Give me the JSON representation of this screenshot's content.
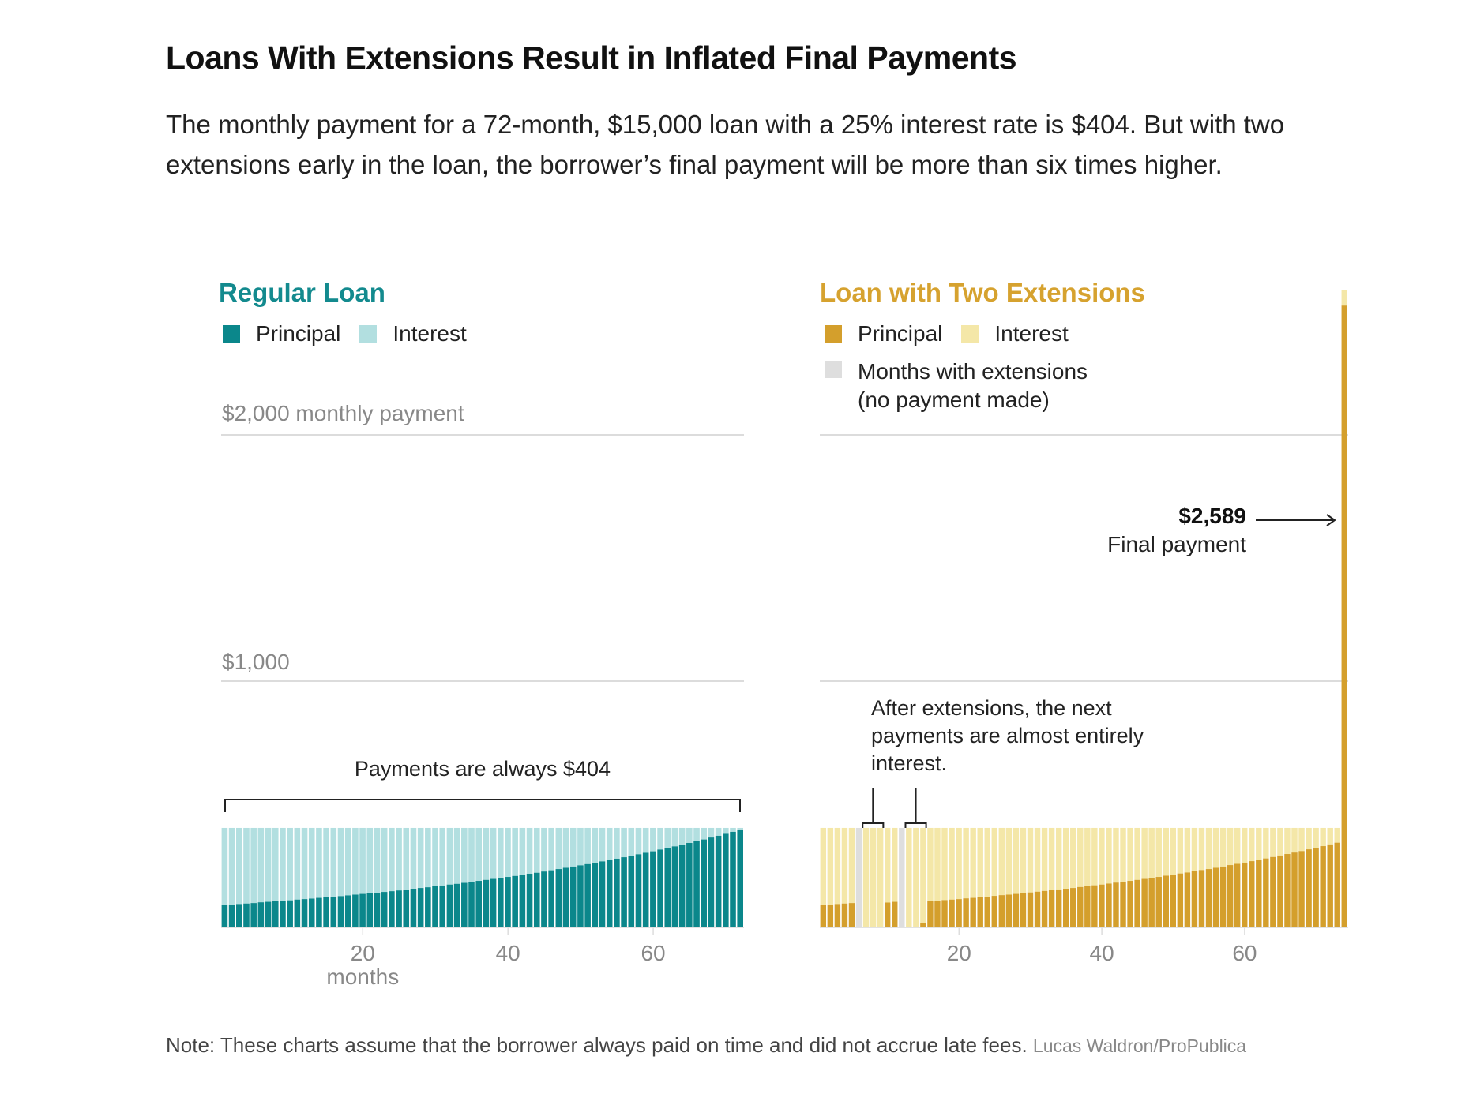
{
  "title": "Loans With Extensions Result in Inflated Final Payments",
  "subtitle": "The monthly payment for a 72-month, $15,000 loan with a 25% interest rate is $404. But with two extensions early in the loan, the borrower’s final payment will be more than six times higher.",
  "note": "Note: These charts assume that the borrower always paid on time and did not accrue late fees.",
  "credit": "Lucas Waldron/ProPublica",
  "colors": {
    "regular_principal": "#0b878b",
    "regular_interest": "#b2dfe0",
    "ext_principal": "#d49f2c",
    "ext_interest": "#f4e7a8",
    "extension_month": "#dedede",
    "regular_title": "#138a8e",
    "ext_title": "#d6a22f"
  },
  "chart_data": [
    {
      "type": "bar",
      "stacked": true,
      "title": "Regular Loan",
      "legend": [
        "Principal",
        "Interest"
      ],
      "ylabel_top": "$2,000 monthly payment",
      "ylabel_mid": "$1,000",
      "yticks": [
        1000,
        2000
      ],
      "ylim": [
        0,
        2000
      ],
      "xlabel": "months",
      "xticks": [
        20,
        40,
        60
      ],
      "annotation": "Payments are always $404",
      "payment": 404,
      "principal": [
        92,
        93,
        95,
        97,
        99,
        102,
        104,
        106,
        108,
        110,
        113,
        115,
        117,
        120,
        122,
        125,
        127,
        130,
        133,
        136,
        138,
        141,
        144,
        147,
        150,
        153,
        157,
        160,
        163,
        167,
        170,
        174,
        177,
        181,
        185,
        189,
        193,
        197,
        201,
        205,
        209,
        213,
        218,
        222,
        227,
        232,
        237,
        242,
        247,
        252,
        257,
        262,
        268,
        273,
        279,
        285,
        291,
        297,
        303,
        309,
        316,
        322,
        329,
        336,
        343,
        350,
        357,
        365,
        372,
        380,
        388,
        396
      ]
    },
    {
      "type": "bar",
      "stacked": true,
      "title": "Loan with Two Extensions",
      "legend": [
        "Principal",
        "Interest",
        "Months with extensions",
        "(no payment made)"
      ],
      "ylim": [
        0,
        2000
      ],
      "yticks": [
        1000,
        2000
      ],
      "xticks": [
        20,
        40,
        60
      ],
      "annotation": "After extensions, the next payments are almost entirely interest.",
      "final_value_label": "$2,589",
      "final_label": "Final payment",
      "extension_months": [
        6,
        12
      ],
      "payments": [
        404,
        404,
        404,
        404,
        404,
        0,
        404,
        404,
        404,
        404,
        404,
        0,
        404,
        404,
        404,
        404,
        404,
        404,
        404,
        404,
        404,
        404,
        404,
        404,
        404,
        404,
        404,
        404,
        404,
        404,
        404,
        404,
        404,
        404,
        404,
        404,
        404,
        404,
        404,
        404,
        404,
        404,
        404,
        404,
        404,
        404,
        404,
        404,
        404,
        404,
        404,
        404,
        404,
        404,
        404,
        404,
        404,
        404,
        404,
        404,
        404,
        404,
        404,
        404,
        404,
        404,
        404,
        404,
        404,
        404,
        404,
        404,
        404,
        2589
      ],
      "principal": [
        92,
        93,
        95,
        97,
        99,
        0,
        0,
        0,
        1,
        101,
        104,
        0,
        0,
        0,
        19,
        106,
        108,
        111,
        113,
        115,
        118,
        120,
        123,
        125,
        128,
        131,
        133,
        136,
        139,
        142,
        145,
        148,
        151,
        154,
        157,
        160,
        164,
        167,
        171,
        174,
        178,
        182,
        185,
        189,
        193,
        197,
        201,
        205,
        210,
        214,
        219,
        223,
        228,
        233,
        237,
        242,
        247,
        253,
        258,
        263,
        269,
        274,
        280,
        286,
        292,
        298,
        304,
        310,
        317,
        323,
        330,
        337,
        344,
        2525
      ]
    }
  ]
}
